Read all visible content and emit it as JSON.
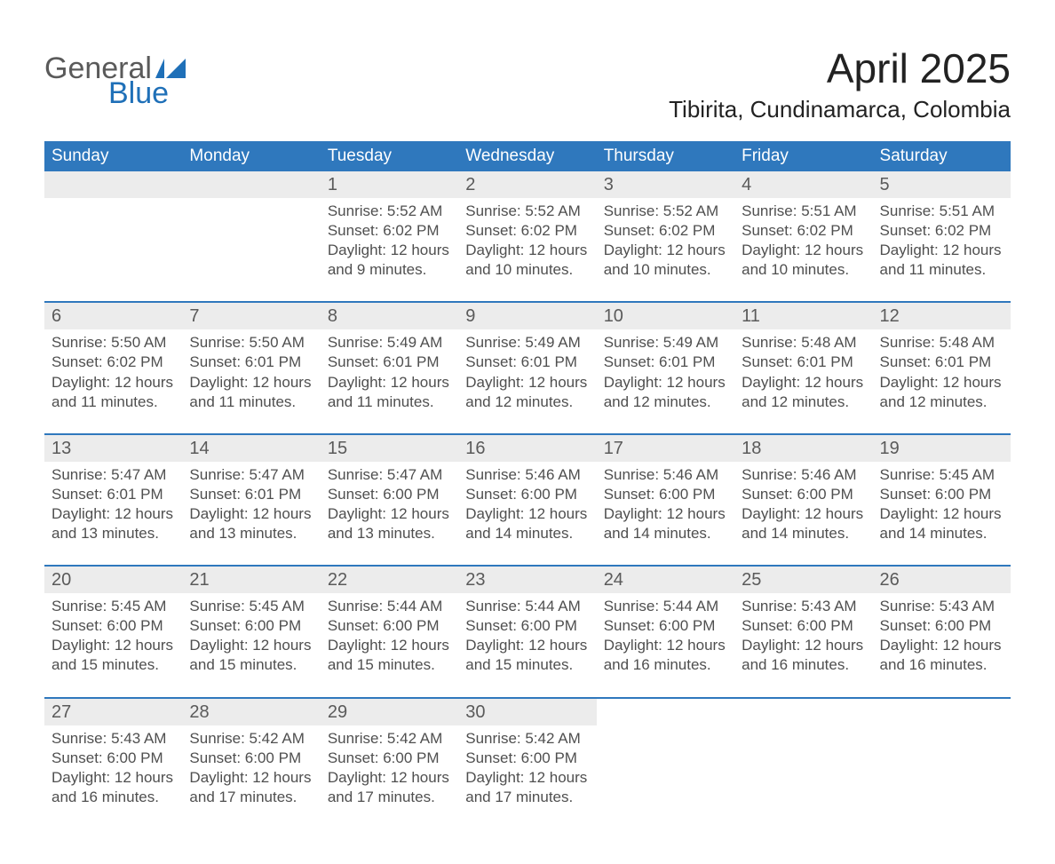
{
  "logo": {
    "word1": "General",
    "word2": "Blue",
    "flag_color": "#1f70b8"
  },
  "title": "April 2025",
  "location": "Tibirita, Cundinamarca, Colombia",
  "colors": {
    "header_blue": "#2f78bd",
    "logo_blue": "#1f70b8",
    "grey_band": "#ececec",
    "text_dark": "#222222",
    "text_grey": "#4f4f4f",
    "page_bg": "#ffffff"
  },
  "weekdays": [
    "Sunday",
    "Monday",
    "Tuesday",
    "Wednesday",
    "Thursday",
    "Friday",
    "Saturday"
  ],
  "labels": {
    "sunrise_prefix": "Sunrise: ",
    "sunset_prefix": "Sunset: ",
    "daylight_prefix": "Daylight: "
  },
  "weeks": [
    [
      null,
      null,
      {
        "n": 1,
        "sunrise": "5:52 AM",
        "sunset": "6:02 PM",
        "daylight": "12 hours and 9 minutes."
      },
      {
        "n": 2,
        "sunrise": "5:52 AM",
        "sunset": "6:02 PM",
        "daylight": "12 hours and 10 minutes."
      },
      {
        "n": 3,
        "sunrise": "5:52 AM",
        "sunset": "6:02 PM",
        "daylight": "12 hours and 10 minutes."
      },
      {
        "n": 4,
        "sunrise": "5:51 AM",
        "sunset": "6:02 PM",
        "daylight": "12 hours and 10 minutes."
      },
      {
        "n": 5,
        "sunrise": "5:51 AM",
        "sunset": "6:02 PM",
        "daylight": "12 hours and 11 minutes."
      }
    ],
    [
      {
        "n": 6,
        "sunrise": "5:50 AM",
        "sunset": "6:02 PM",
        "daylight": "12 hours and 11 minutes."
      },
      {
        "n": 7,
        "sunrise": "5:50 AM",
        "sunset": "6:01 PM",
        "daylight": "12 hours and 11 minutes."
      },
      {
        "n": 8,
        "sunrise": "5:49 AM",
        "sunset": "6:01 PM",
        "daylight": "12 hours and 11 minutes."
      },
      {
        "n": 9,
        "sunrise": "5:49 AM",
        "sunset": "6:01 PM",
        "daylight": "12 hours and 12 minutes."
      },
      {
        "n": 10,
        "sunrise": "5:49 AM",
        "sunset": "6:01 PM",
        "daylight": "12 hours and 12 minutes."
      },
      {
        "n": 11,
        "sunrise": "5:48 AM",
        "sunset": "6:01 PM",
        "daylight": "12 hours and 12 minutes."
      },
      {
        "n": 12,
        "sunrise": "5:48 AM",
        "sunset": "6:01 PM",
        "daylight": "12 hours and 12 minutes."
      }
    ],
    [
      {
        "n": 13,
        "sunrise": "5:47 AM",
        "sunset": "6:01 PM",
        "daylight": "12 hours and 13 minutes."
      },
      {
        "n": 14,
        "sunrise": "5:47 AM",
        "sunset": "6:01 PM",
        "daylight": "12 hours and 13 minutes."
      },
      {
        "n": 15,
        "sunrise": "5:47 AM",
        "sunset": "6:00 PM",
        "daylight": "12 hours and 13 minutes."
      },
      {
        "n": 16,
        "sunrise": "5:46 AM",
        "sunset": "6:00 PM",
        "daylight": "12 hours and 14 minutes."
      },
      {
        "n": 17,
        "sunrise": "5:46 AM",
        "sunset": "6:00 PM",
        "daylight": "12 hours and 14 minutes."
      },
      {
        "n": 18,
        "sunrise": "5:46 AM",
        "sunset": "6:00 PM",
        "daylight": "12 hours and 14 minutes."
      },
      {
        "n": 19,
        "sunrise": "5:45 AM",
        "sunset": "6:00 PM",
        "daylight": "12 hours and 14 minutes."
      }
    ],
    [
      {
        "n": 20,
        "sunrise": "5:45 AM",
        "sunset": "6:00 PM",
        "daylight": "12 hours and 15 minutes."
      },
      {
        "n": 21,
        "sunrise": "5:45 AM",
        "sunset": "6:00 PM",
        "daylight": "12 hours and 15 minutes."
      },
      {
        "n": 22,
        "sunrise": "5:44 AM",
        "sunset": "6:00 PM",
        "daylight": "12 hours and 15 minutes."
      },
      {
        "n": 23,
        "sunrise": "5:44 AM",
        "sunset": "6:00 PM",
        "daylight": "12 hours and 15 minutes."
      },
      {
        "n": 24,
        "sunrise": "5:44 AM",
        "sunset": "6:00 PM",
        "daylight": "12 hours and 16 minutes."
      },
      {
        "n": 25,
        "sunrise": "5:43 AM",
        "sunset": "6:00 PM",
        "daylight": "12 hours and 16 minutes."
      },
      {
        "n": 26,
        "sunrise": "5:43 AM",
        "sunset": "6:00 PM",
        "daylight": "12 hours and 16 minutes."
      }
    ],
    [
      {
        "n": 27,
        "sunrise": "5:43 AM",
        "sunset": "6:00 PM",
        "daylight": "12 hours and 16 minutes."
      },
      {
        "n": 28,
        "sunrise": "5:42 AM",
        "sunset": "6:00 PM",
        "daylight": "12 hours and 17 minutes."
      },
      {
        "n": 29,
        "sunrise": "5:42 AM",
        "sunset": "6:00 PM",
        "daylight": "12 hours and 17 minutes."
      },
      {
        "n": 30,
        "sunrise": "5:42 AM",
        "sunset": "6:00 PM",
        "daylight": "12 hours and 17 minutes."
      },
      null,
      null,
      null
    ]
  ]
}
